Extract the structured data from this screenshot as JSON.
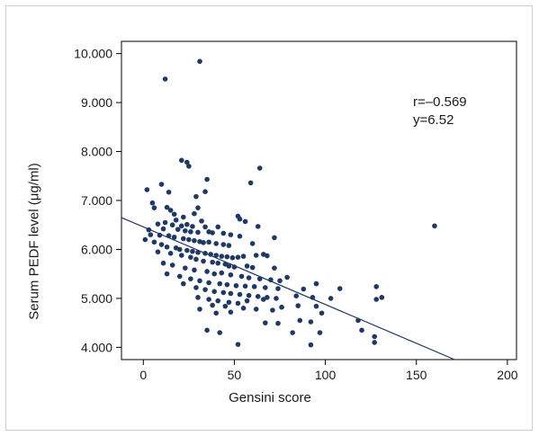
{
  "chart_data": {
    "type": "scatter",
    "title": "",
    "xlabel": "Gensini score",
    "ylabel": "Serum PEDF level (μg/ml)",
    "xlim": [
      -12,
      205
    ],
    "ylim": [
      3.75,
      10.25
    ],
    "x_ticks": [
      0,
      50,
      100,
      150,
      200
    ],
    "y_ticks": [
      4,
      5,
      6,
      7,
      8,
      9,
      10
    ],
    "x_tick_labels": [
      "0",
      "50",
      "100",
      "150",
      "200"
    ],
    "y_tick_labels": [
      "4.000",
      "5.000",
      "6.000",
      "7.000",
      "8.000",
      "9.000",
      "10.000"
    ],
    "grid": false,
    "marker_color": "#1f3864",
    "line_color": "#1f3864",
    "annotations": [
      "r=–0.569",
      "y=6.52"
    ],
    "regression_line": {
      "x": [
        -12,
        171
      ],
      "y": [
        6.65,
        3.75
      ]
    },
    "points": [
      [
        12,
        9.48
      ],
      [
        31,
        9.84
      ],
      [
        21,
        7.82
      ],
      [
        24,
        7.78
      ],
      [
        25,
        7.7
      ],
      [
        64,
        7.66
      ],
      [
        35,
        7.43
      ],
      [
        59,
        7.36
      ],
      [
        10,
        7.33
      ],
      [
        2,
        7.22
      ],
      [
        34,
        7.18
      ],
      [
        14,
        7.17
      ],
      [
        29,
        7.08
      ],
      [
        5,
        6.95
      ],
      [
        13,
        6.86
      ],
      [
        6,
        6.85
      ],
      [
        30,
        6.85
      ],
      [
        15,
        6.8
      ],
      [
        28,
        6.73
      ],
      [
        17,
        6.72
      ],
      [
        22,
        6.66
      ],
      [
        53,
        6.62
      ],
      [
        52,
        6.68
      ],
      [
        18,
        6.6
      ],
      [
        32,
        6.58
      ],
      [
        56,
        6.57
      ],
      [
        12,
        6.55
      ],
      [
        8,
        6.52
      ],
      [
        16,
        6.5
      ],
      [
        21,
        6.48
      ],
      [
        24,
        6.51
      ],
      [
        27,
        6.47
      ],
      [
        34,
        6.46
      ],
      [
        41,
        6.46
      ],
      [
        63,
        6.47
      ],
      [
        3,
        6.4
      ],
      [
        11,
        6.42
      ],
      [
        19,
        6.41
      ],
      [
        23,
        6.38
      ],
      [
        26,
        6.36
      ],
      [
        30,
        6.35
      ],
      [
        36,
        6.36
      ],
      [
        38,
        6.34
      ],
      [
        44,
        6.33
      ],
      [
        48,
        6.3
      ],
      [
        53,
        6.27
      ],
      [
        72,
        6.24
      ],
      [
        4,
        6.3
      ],
      [
        9,
        6.29
      ],
      [
        14,
        6.28
      ],
      [
        17,
        6.25
      ],
      [
        22,
        6.22
      ],
      [
        25,
        6.2
      ],
      [
        28,
        6.18
      ],
      [
        31,
        6.16
      ],
      [
        33,
        6.14
      ],
      [
        36,
        6.15
      ],
      [
        40,
        6.12
      ],
      [
        44,
        6.1
      ],
      [
        47,
        6.08
      ],
      [
        60,
        6.12
      ],
      [
        1,
        6.2
      ],
      [
        6,
        6.15
      ],
      [
        10,
        6.1
      ],
      [
        13,
        6.05
      ],
      [
        18,
        6.03
      ],
      [
        20,
        6.0
      ],
      [
        24,
        5.98
      ],
      [
        27,
        5.96
      ],
      [
        30,
        5.94
      ],
      [
        34,
        5.92
      ],
      [
        37,
        5.9
      ],
      [
        40,
        5.88
      ],
      [
        43,
        5.86
      ],
      [
        46,
        5.85
      ],
      [
        49,
        5.83
      ],
      [
        52,
        5.84
      ],
      [
        55,
        5.86
      ],
      [
        62,
        5.88
      ],
      [
        66,
        5.9
      ],
      [
        68,
        5.87
      ],
      [
        8,
        5.95
      ],
      [
        15,
        5.92
      ],
      [
        21,
        5.88
      ],
      [
        26,
        5.84
      ],
      [
        29,
        5.8
      ],
      [
        33,
        5.76
      ],
      [
        38,
        5.74
      ],
      [
        41,
        5.72
      ],
      [
        45,
        5.7
      ],
      [
        47,
        5.66
      ],
      [
        50,
        5.64
      ],
      [
        57,
        5.66
      ],
      [
        60,
        5.63
      ],
      [
        72,
        5.62
      ],
      [
        11,
        5.72
      ],
      [
        16,
        5.68
      ],
      [
        23,
        5.62
      ],
      [
        28,
        5.58
      ],
      [
        35,
        5.55
      ],
      [
        39,
        5.5
      ],
      [
        43,
        5.52
      ],
      [
        48,
        5.48
      ],
      [
        54,
        5.45
      ],
      [
        58,
        5.42
      ],
      [
        64,
        5.4
      ],
      [
        70,
        5.38
      ],
      [
        75,
        5.36
      ],
      [
        79,
        5.43
      ],
      [
        13,
        5.5
      ],
      [
        20,
        5.45
      ],
      [
        26,
        5.4
      ],
      [
        31,
        5.36
      ],
      [
        36,
        5.32
      ],
      [
        42,
        5.3
      ],
      [
        46,
        5.28
      ],
      [
        51,
        5.26
      ],
      [
        56,
        5.25
      ],
      [
        61,
        5.24
      ],
      [
        67,
        5.22
      ],
      [
        74,
        5.2
      ],
      [
        88,
        5.19
      ],
      [
        95,
        5.3
      ],
      [
        108,
        5.2
      ],
      [
        22,
        5.3
      ],
      [
        29,
        5.22
      ],
      [
        34,
        5.18
      ],
      [
        39,
        5.14
      ],
      [
        44,
        5.12
      ],
      [
        48,
        5.1
      ],
      [
        53,
        5.08
      ],
      [
        58,
        5.06
      ],
      [
        63,
        5.04
      ],
      [
        68,
        5.02
      ],
      [
        73,
        5.0
      ],
      [
        84,
        5.05
      ],
      [
        93,
        5.02
      ],
      [
        103,
        5.0
      ],
      [
        131,
        5.02
      ],
      [
        128,
        5.24
      ],
      [
        30,
        5.02
      ],
      [
        36,
        4.98
      ],
      [
        41,
        4.95
      ],
      [
        47,
        4.92
      ],
      [
        52,
        4.9
      ],
      [
        57,
        4.95
      ],
      [
        66,
        4.98
      ],
      [
        38,
        4.86
      ],
      [
        45,
        4.84
      ],
      [
        55,
        4.8
      ],
      [
        62,
        4.78
      ],
      [
        71,
        4.76
      ],
      [
        76,
        4.82
      ],
      [
        85,
        4.85
      ],
      [
        95,
        4.84
      ],
      [
        31,
        4.78
      ],
      [
        40,
        4.7
      ],
      [
        48,
        4.72
      ],
      [
        98,
        4.7
      ],
      [
        118,
        4.55
      ],
      [
        128,
        4.98
      ],
      [
        86,
        4.55
      ],
      [
        92,
        4.52
      ],
      [
        74,
        4.49
      ],
      [
        67,
        4.5
      ],
      [
        35,
        4.35
      ],
      [
        42,
        4.3
      ],
      [
        82,
        4.3
      ],
      [
        97,
        4.3
      ],
      [
        120,
        4.35
      ],
      [
        127,
        4.22
      ],
      [
        127,
        4.1
      ],
      [
        92,
        4.05
      ],
      [
        52,
        4.06
      ],
      [
        160,
        6.48
      ]
    ]
  }
}
